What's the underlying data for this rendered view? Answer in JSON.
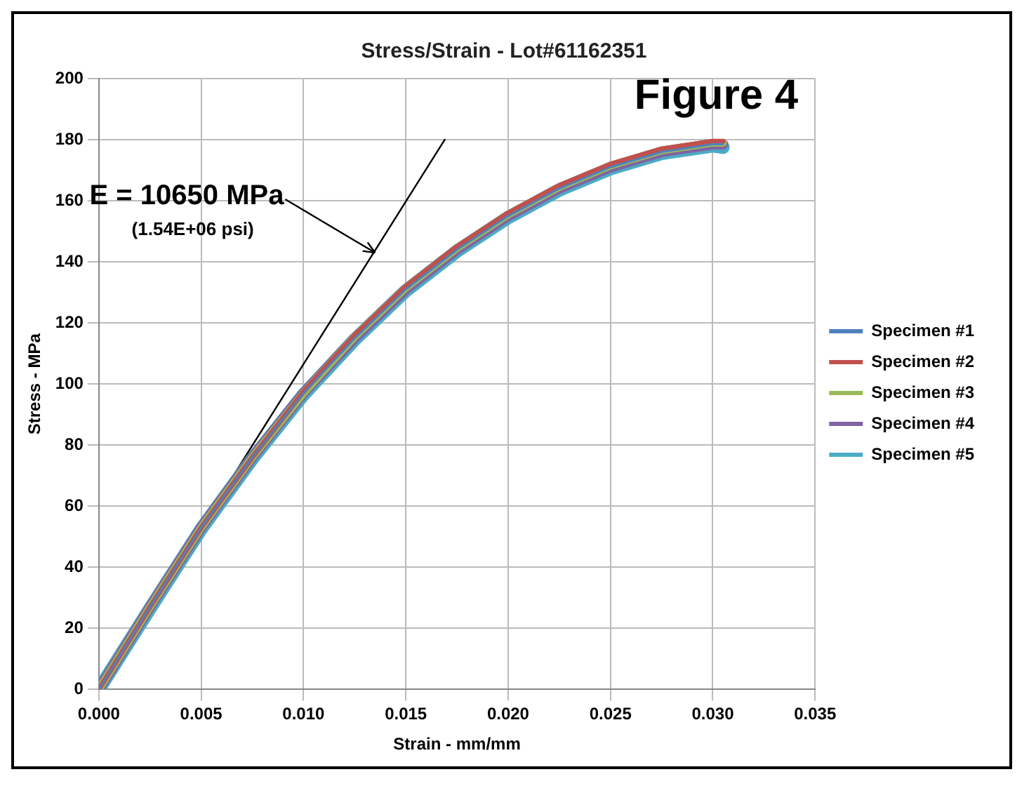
{
  "chart_data": {
    "type": "line",
    "title": "Stress/Strain - Lot#61162351",
    "xlabel": "Strain - mm/mm",
    "ylabel": "Stress - MPa",
    "x": [
      0,
      0.0025,
      0.005,
      0.0075,
      0.01,
      0.0125,
      0.015,
      0.0175,
      0.02,
      0.0225,
      0.025,
      0.0275,
      0.03,
      0.0305
    ],
    "series": [
      {
        "name": "Specimen #1",
        "color": "#4f81bd",
        "values": [
          0,
          27,
          53,
          76,
          97,
          115,
          131,
          144,
          155,
          164,
          171,
          176,
          178.5,
          178.5
        ]
      },
      {
        "name": "Specimen #2",
        "color": "#c0504d",
        "values": [
          0,
          27,
          53,
          76,
          97.5,
          116,
          132,
          145,
          156,
          165,
          172,
          177,
          179.5,
          179.5
        ]
      },
      {
        "name": "Specimen #3",
        "color": "#9bbb59",
        "values": [
          0,
          27,
          53,
          76,
          97,
          115.5,
          131.5,
          144.5,
          155.5,
          164.5,
          171.5,
          176.5,
          179,
          179
        ]
      },
      {
        "name": "Specimen #4",
        "color": "#8064a2",
        "values": [
          0,
          27,
          53,
          76,
          97,
          115,
          131,
          144,
          155,
          164,
          171,
          176,
          178.5,
          178.5
        ]
      },
      {
        "name": "Specimen #5",
        "color": "#4bacc6",
        "values": [
          0,
          26.5,
          52.5,
          75.5,
          96.5,
          114.5,
          130.5,
          143.5,
          154.5,
          163.5,
          170.5,
          175.5,
          178,
          177.5
        ]
      },
      {
        "type": "line",
        "color": "#000000",
        "x": [
          0,
          0.0169
        ],
        "values": [
          0,
          180
        ]
      }
    ],
    "xlim": [
      0,
      0.035
    ],
    "xticks": [
      {
        "value": 0,
        "label": "0.000"
      },
      {
        "value": 0.005,
        "label": "0.005"
      },
      {
        "value": 0.01,
        "label": "0.010"
      },
      {
        "value": 0.015,
        "label": "0.015"
      },
      {
        "value": 0.02,
        "label": "0.020"
      },
      {
        "value": 0.025,
        "label": "0.025"
      },
      {
        "value": 0.03,
        "label": "0.030"
      },
      {
        "value": 0.035,
        "label": "0.035"
      }
    ],
    "ylim": [
      0,
      200
    ],
    "yticks": [
      0,
      20,
      40,
      60,
      80,
      100,
      120,
      140,
      160,
      180,
      200
    ],
    "grid": true,
    "legend": "right",
    "marker": "none",
    "line_style": "solid",
    "annotations": [
      {
        "text": "E = 10650 MPa",
        "x": 0.0135,
        "y": 143
      },
      "(1.54E+06 psi)",
      "Figure 4"
    ]
  }
}
